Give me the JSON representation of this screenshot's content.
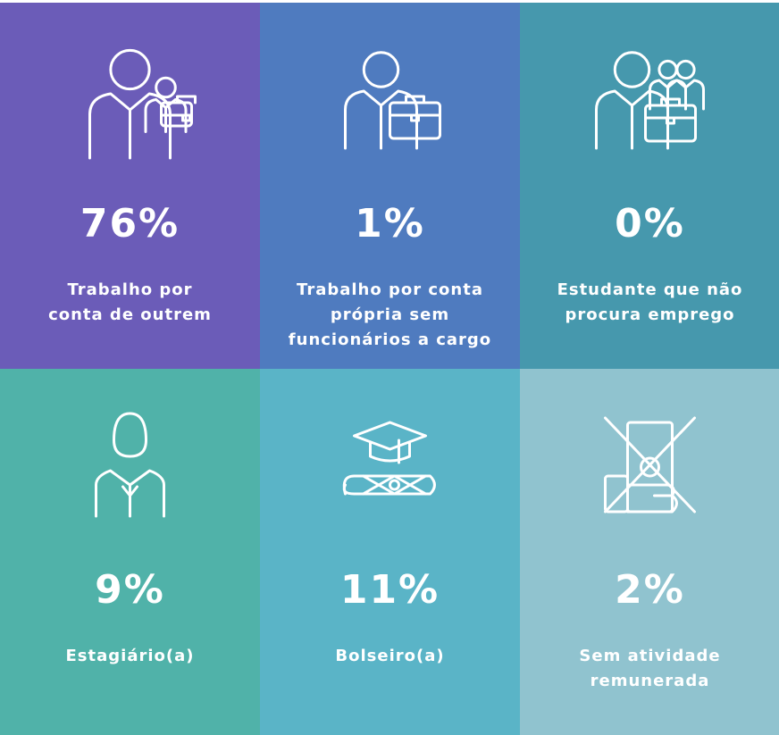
{
  "tiles": [
    {
      "value": "76%",
      "label": [
        "Trabalho por",
        "conta de outrem"
      ]
    },
    {
      "value": "1%",
      "label": [
        "Trabalho por conta",
        "própria sem",
        "funcionários a cargo"
      ]
    },
    {
      "value": "0%",
      "label": [
        "Estudante que não",
        "procura emprego"
      ]
    },
    {
      "value": "9%",
      "label": [
        "Estagiário(a)"
      ]
    },
    {
      "value": "11%",
      "label": [
        "Bolseiro(a)"
      ]
    },
    {
      "value": "2%",
      "label": [
        "Sem atividade",
        "remunerada"
      ]
    }
  ]
}
